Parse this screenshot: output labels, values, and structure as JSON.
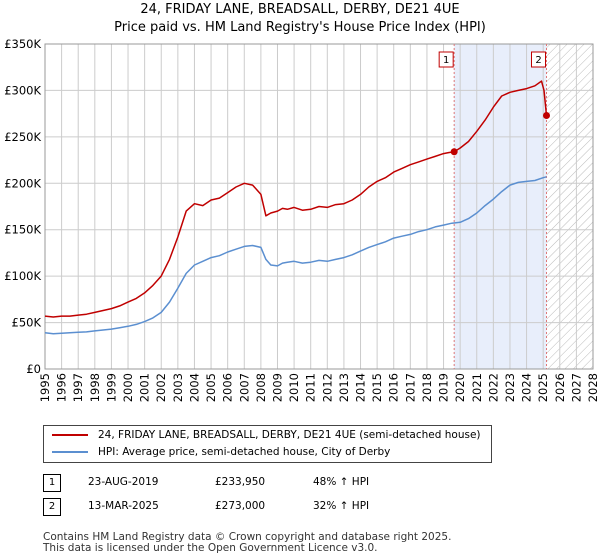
{
  "title_line1": "24, FRIDAY LANE, BREADSALL, DERBY, DE21 4UE",
  "title_line2": "Price paid vs. HM Land Registry's House Price Index (HPI)",
  "colors": {
    "price_line": "#c00000",
    "hpi_line": "#5b8fd0",
    "shade": "#e8eefb",
    "grid": "#cccccc",
    "marker_dash": "#dd7777"
  },
  "chart_data": {
    "type": "line",
    "title": "24, FRIDAY LANE, BREADSALL, DERBY, DE21 4UE",
    "subtitle": "Price paid vs. HM Land Registry's House Price Index (HPI)",
    "xlim": [
      1995,
      2028
    ],
    "ylim": [
      0,
      350000
    ],
    "x_ticks": [
      1995,
      1996,
      1997,
      1998,
      1999,
      2000,
      2001,
      2002,
      2003,
      2004,
      2005,
      2006,
      2007,
      2008,
      2009,
      2010,
      2011,
      2012,
      2013,
      2014,
      2015,
      2016,
      2017,
      2018,
      2019,
      2020,
      2021,
      2022,
      2023,
      2024,
      2025,
      2026,
      2027,
      2028
    ],
    "y_ticks": [
      {
        "value": 0,
        "label": "£0"
      },
      {
        "value": 50000,
        "label": "£50K"
      },
      {
        "value": 100000,
        "label": "£100K"
      },
      {
        "value": 150000,
        "label": "£150K"
      },
      {
        "value": 200000,
        "label": "£200K"
      },
      {
        "value": 250000,
        "label": "£250K"
      },
      {
        "value": 300000,
        "label": "£300K"
      },
      {
        "value": 350000,
        "label": "£350K"
      }
    ],
    "shaded_range": [
      2019.64,
      2025.2
    ],
    "hatched_from": 2025.2,
    "series": [
      {
        "name": "24, FRIDAY LANE, BREADSALL, DERBY, DE21 4UE (semi-detached house)",
        "x": [
          1995,
          1995.5,
          1996,
          1996.5,
          1997,
          1997.5,
          1998,
          1998.5,
          1999,
          1999.5,
          2000,
          2000.5,
          2001,
          2001.5,
          2002,
          2002.5,
          2003,
          2003.5,
          2004,
          2004.5,
          2005,
          2005.5,
          2006,
          2006.5,
          2007,
          2007.5,
          2008,
          2008.3,
          2008.6,
          2009,
          2009.3,
          2009.6,
          2010,
          2010.5,
          2011,
          2011.5,
          2012,
          2012.5,
          2013,
          2013.5,
          2014,
          2014.5,
          2015,
          2015.5,
          2016,
          2016.5,
          2017,
          2017.5,
          2018,
          2018.5,
          2019,
          2019.3,
          2019.64,
          2020,
          2020.5,
          2021,
          2021.5,
          2022,
          2022.5,
          2023,
          2023.5,
          2024,
          2024.5,
          2024.9,
          2025.05,
          2025.2
        ],
        "values": [
          57000,
          56000,
          57000,
          57000,
          58000,
          59000,
          61000,
          63000,
          65000,
          68000,
          72000,
          76000,
          82000,
          90000,
          100000,
          118000,
          142000,
          170000,
          178000,
          176000,
          182000,
          184000,
          190000,
          196000,
          200000,
          198000,
          188000,
          165000,
          168000,
          170000,
          173000,
          172000,
          174000,
          171000,
          172000,
          175000,
          174000,
          177000,
          178000,
          182000,
          188000,
          196000,
          202000,
          206000,
          212000,
          216000,
          220000,
          223000,
          226000,
          229000,
          232000,
          233000,
          233950,
          238000,
          245000,
          256000,
          268000,
          282000,
          294000,
          298000,
          300000,
          302000,
          305000,
          310000,
          300000,
          273000
        ]
      },
      {
        "name": "HPI: Average price, semi-detached house, City of Derby",
        "x": [
          1995,
          1995.5,
          1996,
          1996.5,
          1997,
          1997.5,
          1998,
          1998.5,
          1999,
          1999.5,
          2000,
          2000.5,
          2001,
          2001.5,
          2002,
          2002.5,
          2003,
          2003.5,
          2004,
          2004.5,
          2005,
          2005.5,
          2006,
          2006.5,
          2007,
          2007.5,
          2008,
          2008.3,
          2008.6,
          2009,
          2009.3,
          2009.6,
          2010,
          2010.5,
          2011,
          2011.5,
          2012,
          2012.5,
          2013,
          2013.5,
          2014,
          2014.5,
          2015,
          2015.5,
          2016,
          2016.5,
          2017,
          2017.5,
          2018,
          2018.5,
          2019,
          2019.5,
          2020,
          2020.5,
          2021,
          2021.5,
          2022,
          2022.5,
          2023,
          2023.5,
          2024,
          2024.5,
          2025,
          2025.2
        ],
        "values": [
          39000,
          38000,
          38500,
          39000,
          39500,
          40000,
          41000,
          42000,
          43000,
          44500,
          46000,
          48000,
          51000,
          55000,
          61000,
          72000,
          87000,
          103000,
          112000,
          116000,
          120000,
          122000,
          126000,
          129000,
          132000,
          133000,
          131000,
          118000,
          112000,
          111000,
          114000,
          115000,
          116000,
          114000,
          115000,
          117000,
          116000,
          118000,
          120000,
          123000,
          127000,
          131000,
          134000,
          137000,
          141000,
          143000,
          145000,
          148000,
          150000,
          153000,
          155000,
          157000,
          158000,
          162000,
          168000,
          176000,
          183000,
          191000,
          198000,
          201000,
          202000,
          203000,
          206000,
          207000
        ]
      }
    ],
    "sale_markers": [
      {
        "label": "1",
        "x": 2019.64,
        "value": 233950
      },
      {
        "label": "2",
        "x": 2025.2,
        "value": 273000
      }
    ]
  },
  "legend": {
    "price_label": "24, FRIDAY LANE, BREADSALL, DERBY, DE21 4UE (semi-detached house)",
    "hpi_label": "HPI: Average price, semi-detached house, City of Derby"
  },
  "sales": [
    {
      "num": "1",
      "date": "23-AUG-2019",
      "price": "£233,950",
      "hpi": "48% ↑ HPI"
    },
    {
      "num": "2",
      "date": "13-MAR-2025",
      "price": "£273,000",
      "hpi": "32% ↑ HPI"
    }
  ],
  "footer_line1": "Contains HM Land Registry data © Crown copyright and database right 2025.",
  "footer_line2": "This data is licensed under the Open Government Licence v3.0."
}
